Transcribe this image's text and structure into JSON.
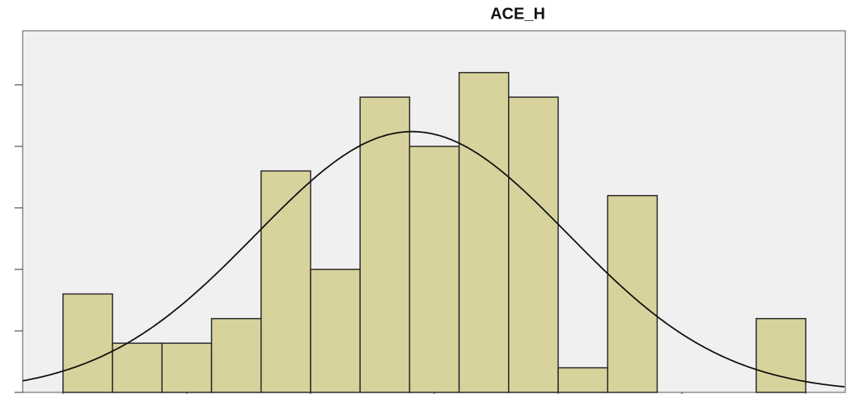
{
  "chart_data": {
    "type": "histogram",
    "title": "ACE_H",
    "bins": [
      0,
      2,
      4,
      6,
      8,
      10,
      12,
      14,
      16,
      18,
      20,
      22,
      24,
      26,
      28,
      30
    ],
    "values": [
      8,
      4,
      4,
      6,
      18,
      10,
      24,
      20,
      26,
      24,
      2,
      16,
      0,
      0,
      6
    ],
    "color": "#d8d39c",
    "xlim": [
      -1.63,
      31.6
    ],
    "xticks": [
      0,
      5,
      10,
      15,
      20,
      25,
      30
    ],
    "ylim": [
      0,
      29.4
    ],
    "yticks": [
      0,
      5,
      10,
      15,
      20,
      25
    ],
    "curve": {
      "mean": 14.1,
      "sd": 6.3,
      "peak": 21.2
    }
  }
}
